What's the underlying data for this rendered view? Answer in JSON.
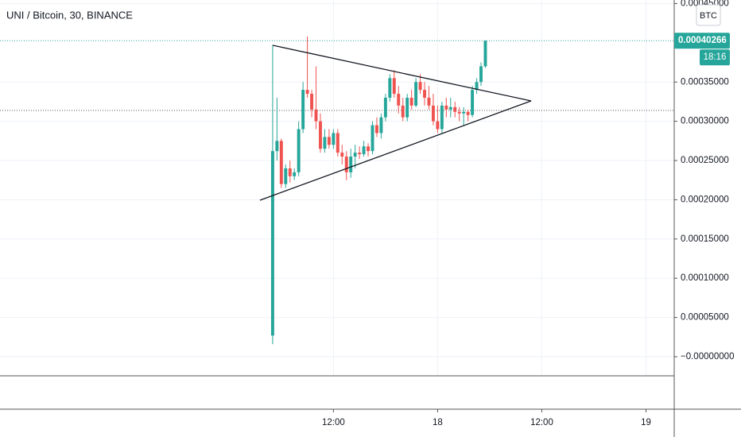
{
  "chart_data": {
    "type": "candlestick",
    "title": "UNI / Bitcoin, 30, BINANCE",
    "currency_button": "BTC",
    "last_price": {
      "value": 0.00040266,
      "label": "0.00040266"
    },
    "countdown": "18:16",
    "up_color": "#26a69a",
    "down_color": "#ef5350",
    "grid": true,
    "x": [
      0,
      1,
      2,
      3,
      4,
      5,
      6,
      7,
      8,
      9,
      10,
      11,
      12,
      13,
      14,
      15,
      16,
      17,
      18,
      19,
      20,
      21,
      22,
      23,
      24,
      25,
      26,
      27,
      28,
      29,
      30,
      31,
      32,
      33,
      34,
      35,
      36,
      37,
      38,
      39,
      40,
      41,
      42,
      43,
      44,
      45,
      46,
      47,
      48,
      49
    ],
    "open": [
      2.7e-05,
      0.000262,
      0.000275,
      0.00022,
      0.00024,
      0.00023,
      0.000235,
      0.00029,
      0.00034,
      0.000335,
      0.000315,
      0.0003,
      0.000265,
      0.00028,
      0.00027,
      0.000285,
      0.00026,
      0.000255,
      0.000235,
      0.000255,
      0.00026,
      0.000258,
      0.000268,
      0.000262,
      0.000295,
      0.000285,
      0.000305,
      0.00033,
      0.000355,
      0.000335,
      0.00032,
      0.000305,
      0.00033,
      0.00032,
      0.00035,
      0.00034,
      0.00033,
      0.00032,
      0.0003,
      0.00029,
      0.00032,
      0.000315,
      0.000318,
      0.000312,
      0.00031,
      0.000312,
      0.000308,
      0.00034,
      0.00035,
      0.00037
    ],
    "high": [
      0.000397,
      0.00033,
      0.000278,
      0.000245,
      0.00025,
      0.00024,
      0.0003,
      0.00035,
      0.000408,
      0.00034,
      0.00037,
      0.00031,
      0.00029,
      0.00029,
      0.00029,
      0.00029,
      0.00027,
      0.000262,
      0.000265,
      0.00027,
      0.000268,
      0.000275,
      0.000272,
      0.0003,
      0.000305,
      0.00031,
      0.000335,
      0.00036,
      0.000365,
      0.000345,
      0.00033,
      0.000335,
      0.00034,
      0.000355,
      0.00036,
      0.00035,
      0.000345,
      0.000335,
      0.00032,
      0.000325,
      0.00033,
      0.00033,
      0.000325,
      0.000318,
      0.000318,
      0.000315,
      0.000345,
      0.000355,
      0.000375,
      0.000403
    ],
    "low": [
      1.6e-05,
      0.00025,
      0.000215,
      0.000215,
      0.000222,
      0.000225,
      0.00023,
      0.000285,
      0.00033,
      0.000305,
      0.00029,
      0.00026,
      0.00026,
      0.000265,
      0.000265,
      0.000255,
      0.000245,
      0.000225,
      0.000228,
      0.00024,
      0.000252,
      0.000255,
      0.000255,
      0.000258,
      0.00028,
      0.000278,
      0.0003,
      0.000325,
      0.00033,
      0.00031,
      0.0003,
      0.0003,
      0.000315,
      0.000318,
      0.000335,
      0.00032,
      0.000315,
      0.000295,
      0.000285,
      0.000285,
      0.000305,
      0.000305,
      0.000305,
      0.0003,
      0.000295,
      0.0003,
      0.000305,
      0.000335,
      0.000345,
      0.000368
    ],
    "close": [
      0.000262,
      0.000275,
      0.00022,
      0.00024,
      0.00023,
      0.000235,
      0.00029,
      0.00034,
      0.000335,
      0.000315,
      0.0003,
      0.000265,
      0.00028,
      0.00027,
      0.000285,
      0.00026,
      0.000255,
      0.000235,
      0.000255,
      0.00026,
      0.000258,
      0.000268,
      0.000262,
      0.000295,
      0.000285,
      0.000305,
      0.00033,
      0.000355,
      0.000335,
      0.00032,
      0.000305,
      0.00033,
      0.00032,
      0.00035,
      0.00034,
      0.00033,
      0.00032,
      0.0003,
      0.00029,
      0.00032,
      0.000315,
      0.000318,
      0.000312,
      0.00031,
      0.000312,
      0.000308,
      0.00034,
      0.00035,
      0.00037,
      0.00040266
    ],
    "xlim": [
      -62.8,
      92.5
    ],
    "ylim": [
      -2.33e-05,
      0.0004545
    ],
    "xticks": [
      {
        "value": 14,
        "label": "12:00"
      },
      {
        "value": 38,
        "label": "18"
      },
      {
        "value": 62,
        "label": "12:00"
      },
      {
        "value": 86,
        "label": "19"
      }
    ],
    "yticks": [
      {
        "value": 0,
        "label": "−0.00000000"
      },
      {
        "value": 5e-05,
        "label": "0.00005000"
      },
      {
        "value": 0.0001,
        "label": "0.00010000"
      },
      {
        "value": 0.00015,
        "label": "0.00015000"
      },
      {
        "value": 0.0002,
        "label": "0.00020000"
      },
      {
        "value": 0.00025,
        "label": "0.00025000"
      },
      {
        "value": 0.0003,
        "label": "0.00030000"
      },
      {
        "value": 0.00035,
        "label": "0.00035000"
      },
      {
        "value": 0.00045,
        "label": "0.00045000"
      }
    ]
  }
}
